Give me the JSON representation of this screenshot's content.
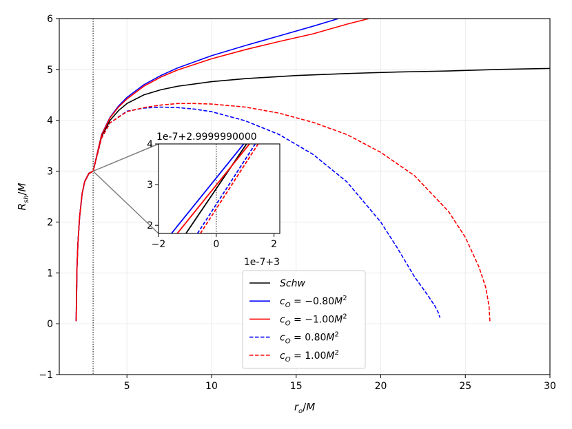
{
  "chart_data": {
    "type": "line",
    "xlabel": "r_o/M",
    "ylabel": "R_sh/M",
    "xlim": [
      1,
      30
    ],
    "ylim": [
      -1,
      6
    ],
    "xticks": [
      5,
      10,
      15,
      20,
      25,
      30
    ],
    "yticks": [
      -1,
      0,
      1,
      2,
      3,
      4,
      5,
      6
    ],
    "grid": true,
    "legend_position": "lower center",
    "vline_x": 3,
    "series": [
      {
        "name": "Schw",
        "color": "#000000",
        "style": "solid",
        "x": [
          2,
          2.02,
          2.05,
          2.1,
          2.2,
          2.35,
          2.5,
          2.75,
          3,
          3.5,
          4,
          4.5,
          5,
          6,
          7,
          8,
          10,
          12,
          15,
          18,
          21,
          24,
          27,
          30
        ],
        "y": [
          0.05,
          0.73,
          1.13,
          1.56,
          2.09,
          2.55,
          2.79,
          2.95,
          3.0,
          3.68,
          4.0,
          4.19,
          4.33,
          4.5,
          4.6,
          4.67,
          4.76,
          4.82,
          4.88,
          4.92,
          4.95,
          4.97,
          5.0,
          5.02
        ]
      },
      {
        "name": "c_O = -0.80M^2",
        "color": "#0000ff",
        "style": "solid",
        "x": [
          2,
          2.05,
          2.1,
          2.2,
          2.35,
          2.5,
          2.75,
          3,
          3.5,
          4,
          4.5,
          5,
          6,
          7,
          8,
          10,
          12,
          14,
          16,
          17.5
        ],
        "y": [
          0.05,
          1.14,
          1.57,
          2.1,
          2.56,
          2.8,
          2.96,
          3.0,
          3.72,
          4.06,
          4.28,
          4.45,
          4.7,
          4.88,
          5.03,
          5.27,
          5.47,
          5.66,
          5.85,
          6.0
        ]
      },
      {
        "name": "c_O = -1.00M^2",
        "color": "#ff0000",
        "style": "solid",
        "x": [
          2,
          2.05,
          2.1,
          2.2,
          2.35,
          2.5,
          2.75,
          3,
          3.5,
          4,
          4.5,
          5,
          6,
          7,
          8,
          10,
          12,
          14,
          16,
          18,
          19.3
        ],
        "y": [
          0.05,
          1.14,
          1.57,
          2.1,
          2.56,
          2.8,
          2.96,
          3.0,
          3.71,
          4.05,
          4.26,
          4.42,
          4.67,
          4.85,
          4.99,
          5.21,
          5.39,
          5.55,
          5.7,
          5.89,
          6.0
        ]
      },
      {
        "name": "c_O = 0.80M^2",
        "color": "#0000ff",
        "style": "dashed",
        "x": [
          2,
          2.05,
          2.1,
          2.2,
          2.35,
          2.5,
          2.75,
          3,
          3.5,
          4,
          5,
          6,
          7,
          8,
          9,
          10,
          12,
          14,
          16,
          18,
          20,
          21,
          22,
          22.8,
          23.2,
          23.4,
          23.5
        ],
        "y": [
          0.05,
          1.13,
          1.56,
          2.09,
          2.55,
          2.79,
          2.95,
          3.0,
          3.65,
          3.95,
          4.18,
          4.24,
          4.26,
          4.25,
          4.22,
          4.17,
          3.99,
          3.72,
          3.33,
          2.79,
          2.0,
          1.48,
          0.92,
          0.55,
          0.35,
          0.22,
          0.12
        ]
      },
      {
        "name": "c_O = 1.00M^2",
        "color": "#ff0000",
        "style": "dashed",
        "x": [
          2,
          2.05,
          2.1,
          2.2,
          2.35,
          2.5,
          2.75,
          3,
          3.5,
          4,
          5,
          6,
          7,
          8,
          9,
          10,
          12,
          14,
          16,
          18,
          20,
          22,
          24,
          25,
          25.8,
          26.2,
          26.4,
          26.45
        ],
        "y": [
          0.05,
          1.13,
          1.56,
          2.09,
          2.55,
          2.79,
          2.95,
          3.0,
          3.65,
          3.95,
          4.17,
          4.25,
          4.3,
          4.33,
          4.33,
          4.32,
          4.26,
          4.14,
          3.96,
          3.72,
          3.37,
          2.91,
          2.21,
          1.7,
          1.12,
          0.72,
          0.35,
          0.05
        ]
      }
    ],
    "inset": {
      "xlim": [
        -2,
        2.2
      ],
      "ylim": [
        1.8,
        4
      ],
      "xticks": [
        -2,
        0,
        2
      ],
      "yticks": [
        2,
        3,
        4
      ],
      "x_offset_label": "1e-7+3",
      "y_offset_label": "1e-7+2.9999990000",
      "vline_x": 0,
      "lines": [
        {
          "series": 0,
          "x": [
            -1.05,
            1.05
          ],
          "y": [
            1.8,
            4.0
          ]
        },
        {
          "series": 1,
          "x": [
            -1.55,
            0.95
          ],
          "y": [
            1.8,
            4.0
          ]
        },
        {
          "series": 2,
          "x": [
            -1.35,
            1.15
          ],
          "y": [
            1.8,
            4.0
          ]
        },
        {
          "series": 3,
          "x": [
            -0.65,
            1.35
          ],
          "y": [
            1.8,
            4.0
          ]
        },
        {
          "series": 4,
          "x": [
            -0.55,
            1.45
          ],
          "y": [
            1.8,
            4.0
          ]
        }
      ]
    }
  }
}
